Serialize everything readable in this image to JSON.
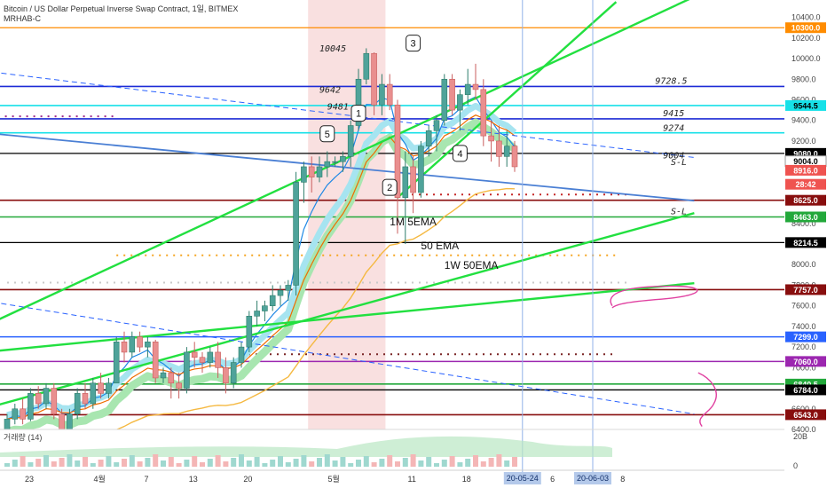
{
  "header": {
    "symbol": "Bitcoin / US Dollar Perpetual Inverse Swap Contract, 1일, BITMEX",
    "study": "MRHAB-C"
  },
  "chart_data": {
    "type": "candlestick",
    "timeframe": "1일",
    "price_range": [
      6400,
      10500
    ],
    "y_ticks": [
      6400,
      6600,
      6800,
      7000,
      7200,
      7400,
      7600,
      7800,
      8000,
      8200,
      8400,
      8600,
      8800,
      9000,
      9200,
      9400,
      9600,
      9800,
      10000,
      10200,
      10400
    ],
    "x_tick_labels": [
      {
        "label": "23",
        "day": 0
      },
      {
        "label": "4월",
        "day": 9
      },
      {
        "label": "7",
        "day": 15
      },
      {
        "label": "13",
        "day": 21
      },
      {
        "label": "20",
        "day": 28
      },
      {
        "label": "5월",
        "day": 39
      },
      {
        "label": "11",
        "day": 49
      },
      {
        "label": "18",
        "day": 56
      },
      {
        "label": "6",
        "day": 67
      },
      {
        "label": "8",
        "day": 76
      }
    ],
    "candles": [
      [
        6400,
        6550,
        6350,
        6500
      ],
      [
        6500,
        6650,
        6450,
        6600
      ],
      [
        6600,
        6700,
        6450,
        6500
      ],
      [
        6500,
        6800,
        6480,
        6750
      ],
      [
        6750,
        6820,
        6600,
        6650
      ],
      [
        6650,
        6850,
        6600,
        6800
      ],
      [
        6800,
        6850,
        6500,
        6550
      ],
      [
        6550,
        6600,
        6300,
        6400
      ],
      [
        6400,
        6600,
        6350,
        6550
      ],
      [
        6550,
        6800,
        6500,
        6750
      ],
      [
        6750,
        6850,
        6600,
        6650
      ],
      [
        6650,
        6900,
        6600,
        6850
      ],
      [
        6850,
        6950,
        6700,
        6750
      ],
      [
        6750,
        6900,
        6700,
        6850
      ],
      [
        6850,
        7300,
        6850,
        7250
      ],
      [
        7250,
        7350,
        7050,
        7150
      ],
      [
        7150,
        7350,
        7100,
        7300
      ],
      [
        7300,
        7350,
        7150,
        7200
      ],
      [
        7200,
        7300,
        7100,
        7250
      ],
      [
        7250,
        7270,
        6850,
        6900
      ],
      [
        6900,
        7000,
        6850,
        6950
      ],
      [
        6950,
        7000,
        6700,
        6850
      ],
      [
        6850,
        6950,
        6700,
        6800
      ],
      [
        6800,
        7200,
        6750,
        7150
      ],
      [
        7150,
        7250,
        7000,
        7100
      ],
      [
        7100,
        7150,
        6950,
        7050
      ],
      [
        7050,
        7200,
        7000,
        7150
      ],
      [
        7150,
        7250,
        6900,
        7000
      ],
      [
        7000,
        7100,
        6750,
        6850
      ],
      [
        6850,
        7100,
        6800,
        7050
      ],
      [
        7050,
        7250,
        7000,
        7200
      ],
      [
        7200,
        7550,
        7150,
        7500
      ],
      [
        7500,
        7650,
        7400,
        7550
      ],
      [
        7550,
        7650,
        7450,
        7600
      ],
      [
        7600,
        7800,
        7550,
        7700
      ],
      [
        7700,
        7800,
        7600,
        7750
      ],
      [
        7750,
        7850,
        7650,
        7800
      ],
      [
        7800,
        8900,
        7700,
        8800
      ],
      [
        8800,
        9000,
        8600,
        8950
      ],
      [
        8950,
        9050,
        8700,
        8850
      ],
      [
        8850,
        9050,
        8800,
        8950
      ],
      [
        8950,
        9100,
        8850,
        9000
      ],
      [
        9000,
        9050,
        8950,
        9000
      ],
      [
        9000,
        9100,
        8900,
        9050
      ],
      [
        9050,
        9400,
        8950,
        9350
      ],
      [
        9350,
        9900,
        9300,
        9800
      ],
      [
        9800,
        10100,
        9750,
        10050
      ],
      [
        10050,
        10060,
        9450,
        9550
      ],
      [
        9550,
        9850,
        9450,
        9750
      ],
      [
        9750,
        9850,
        9500,
        9550
      ],
      [
        9550,
        9600,
        8300,
        8650
      ],
      [
        8650,
        9100,
        8200,
        8950
      ],
      [
        8950,
        9050,
        8500,
        8700
      ],
      [
        8700,
        9200,
        8650,
        9150
      ],
      [
        9150,
        9350,
        9050,
        9300
      ],
      [
        9300,
        9450,
        9100,
        9400
      ],
      [
        9400,
        9850,
        9350,
        9800
      ],
      [
        9800,
        9850,
        9450,
        9500
      ],
      [
        9500,
        9700,
        9300,
        9650
      ],
      [
        9650,
        9900,
        9550,
        9750
      ],
      [
        9750,
        9950,
        9600,
        9700
      ],
      [
        9700,
        9800,
        9150,
        9250
      ],
      [
        9250,
        9400,
        9000,
        9200
      ],
      [
        9200,
        9350,
        8950,
        9050
      ],
      [
        9050,
        9300,
        8950,
        9150
      ],
      [
        9150,
        9200,
        8900,
        8950
      ]
    ],
    "horizontal_levels": [
      {
        "price": 10300.0,
        "label": "10300.0",
        "color": "#ff8c00"
      },
      {
        "price": 9730.0,
        "label": "",
        "color": "#1d2bd6"
      },
      {
        "price": 9544.5,
        "label": "9544.5",
        "color": "#17e1e8"
      },
      {
        "price": 9415.0,
        "label": "",
        "color": "#1d2bd6"
      },
      {
        "price": 9280.0,
        "label": "",
        "color": "#17e1e8"
      },
      {
        "price": 9080.0,
        "label": "9080.0",
        "color": "#000000"
      },
      {
        "price": 8625.0,
        "label": "8625.0",
        "color": "#880e0e"
      },
      {
        "price": 8463.0,
        "label": "8463.0",
        "color": "#22a83a"
      },
      {
        "price": 8214.5,
        "label": "8214.5",
        "color": "#000000"
      },
      {
        "price": 7757.0,
        "label": "7757.0",
        "color": "#880e0e"
      },
      {
        "price": 7299.0,
        "label": "",
        "color": "#2962ff"
      },
      {
        "price": 7060.0,
        "label": "7060.0",
        "color": "#9c27b0"
      },
      {
        "price": 6840.5,
        "label": "6840.5",
        "color": "#22a83a"
      },
      {
        "price": 6784.0,
        "label": "6784.0",
        "color": "#000000"
      },
      {
        "price": 6543.0,
        "label": "6543.0",
        "color": "#880e0e"
      }
    ],
    "price_badges": [
      {
        "price": 10300.0,
        "label": "10300.0",
        "bg": "#ff8c00",
        "fg": "#ffffff"
      },
      {
        "price": 9544.5,
        "label": "9544.5",
        "bg": "#17e1e8",
        "fg": "#000000"
      },
      {
        "price": 9080.0,
        "label": "9080.0",
        "bg": "#000000",
        "fg": "#ffffff"
      },
      {
        "price": 9004.0,
        "label": "9004.0",
        "bg": "#ffffff",
        "fg": "#000000"
      },
      {
        "price": 8916.0,
        "label": "8916.0",
        "bg": "#ef5350",
        "fg": "#ffffff"
      },
      {
        "price": 8780.0,
        "label": "28:42",
        "bg": "#ef5350",
        "fg": "#ffffff"
      },
      {
        "price": 8625.0,
        "label": "8625.0",
        "bg": "#880e0e",
        "fg": "#ffffff"
      },
      {
        "price": 8463.0,
        "label": "8463.0",
        "bg": "#22a83a",
        "fg": "#ffffff"
      },
      {
        "price": 8214.5,
        "label": "8214.5",
        "bg": "#000000",
        "fg": "#ffffff"
      },
      {
        "price": 7757.0,
        "label": "7757.0",
        "bg": "#880e0e",
        "fg": "#ffffff"
      },
      {
        "price": 7299.0,
        "label": "7299.0",
        "bg": "#2962ff",
        "fg": "#ffffff"
      },
      {
        "price": 7060.0,
        "label": "7060.0",
        "bg": "#9c27b0",
        "fg": "#ffffff"
      },
      {
        "price": 6840.5,
        "label": "6840.5",
        "bg": "#22a83a",
        "fg": "#ffffff"
      },
      {
        "price": 6784.0,
        "label": "6784.0",
        "bg": "#000000",
        "fg": "#ffffff"
      },
      {
        "price": 6543.0,
        "label": "6543.0",
        "bg": "#880e0e",
        "fg": "#ffffff"
      }
    ],
    "level_annotations": [
      {
        "price": 10045,
        "label": "10045",
        "day": 40
      },
      {
        "price": 9642,
        "label": "9642",
        "day": 40
      },
      {
        "price": 9481,
        "label": "9481",
        "day": 41
      },
      {
        "price": 9728.5,
        "label": "9728.5",
        "day": 83
      },
      {
        "price": 9415,
        "label": "9415",
        "day": 84
      },
      {
        "price": 9274,
        "label": "9274",
        "day": 84
      },
      {
        "price": 9004,
        "label": "9004",
        "day": 84
      },
      {
        "price": 8940,
        "label": "S-L",
        "day": 85
      },
      {
        "price": 8463,
        "label": "S-L",
        "day": 85
      }
    ],
    "wave_labels": [
      {
        "label": "1",
        "day": 45,
        "price": 9470
      },
      {
        "label": "2",
        "day": 49,
        "price": 8750
      },
      {
        "label": "3",
        "day": 52,
        "price": 10150
      },
      {
        "label": "4",
        "day": 58,
        "price": 9080
      },
      {
        "label": "5",
        "day": 41,
        "price": 9270
      }
    ],
    "line_labels": [
      {
        "label": "1M 5EMA",
        "day": 49,
        "price": 8380
      },
      {
        "label": "50 EMA",
        "day": 53,
        "price": 8150
      },
      {
        "label": "1W 50EMA",
        "day": 56,
        "price": 7960
      }
    ],
    "trendlines": [
      {
        "name": "green-1",
        "color": "#22e040",
        "from": [
          -3,
          7400
        ],
        "to": [
          88,
          10600
        ]
      },
      {
        "name": "green-2",
        "color": "#22e040",
        "from": [
          -3,
          6600
        ],
        "to": [
          88,
          8500
        ]
      },
      {
        "name": "green-3",
        "color": "#22e040",
        "from": [
          -3,
          7150
        ],
        "to": [
          88,
          7820
        ]
      },
      {
        "name": "green-4",
        "color": "#22e040",
        "from": [
          50,
          8650
        ],
        "to": [
          78,
          10550
        ]
      },
      {
        "name": "blue-1",
        "color": "#4a7fd4",
        "from": [
          -3,
          9280
        ],
        "to": [
          88,
          8620
        ]
      },
      {
        "name": "blue-dash-1",
        "color": "#2962ff",
        "from": [
          -3,
          9880
        ],
        "to": [
          88,
          9040
        ],
        "dashed": true
      },
      {
        "name": "blue-dash-2",
        "color": "#2962ff",
        "from": [
          -3,
          7650
        ],
        "to": [
          88,
          6550
        ],
        "dashed": true
      }
    ],
    "volume_label": "거래량 (14)",
    "volume_axis": {
      "ticks": [
        "20B",
        "0"
      ]
    },
    "date_badges": [
      {
        "label": "20-05-24",
        "day": 66
      },
      {
        "label": "20-06-03",
        "day": 75
      }
    ],
    "highlight_range_days": [
      39,
      48
    ]
  }
}
